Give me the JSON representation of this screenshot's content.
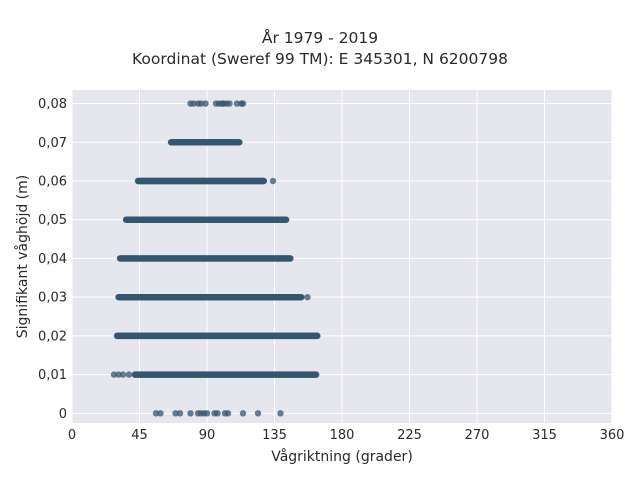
{
  "title_line1": "År 1979 - 2019",
  "title_line2": "Koordinat (Sweref 99 TM): E 345301, N 6200798",
  "colors": {
    "plot_bg": "#e6e6ef",
    "grid": "#ffffff",
    "marker": "#35566e"
  },
  "chart_data": {
    "type": "scatter",
    "xlabel": "Vågriktning (grader)",
    "ylabel": "Signifikant våghöjd (m)",
    "xlim": [
      0,
      360
    ],
    "ylim": [
      -0.0025,
      0.0835
    ],
    "x_ticks": [
      0,
      45,
      90,
      135,
      180,
      225,
      270,
      315,
      360
    ],
    "x_tick_labels": [
      "0",
      "45",
      "90",
      "135",
      "180",
      "225",
      "270",
      "315",
      "360"
    ],
    "y_ticks": [
      0,
      0.01,
      0.02,
      0.03,
      0.04,
      0.05,
      0.06,
      0.07,
      0.08
    ],
    "y_tick_labels": [
      "0",
      "0,01",
      "0,02",
      "0,03",
      "0,04",
      "0,05",
      "0,06",
      "0,07",
      "0,08"
    ],
    "grid": true,
    "series": [
      {
        "values": [
          {
            "y": 0.0,
            "x": [
              56,
              59,
              69,
              72,
              79,
              84,
              86,
              88,
              90,
              95,
              97,
              102,
              104,
              114,
              124,
              139
            ]
          },
          {
            "y": 0.01,
            "range": [
              28,
              163
            ],
            "sparse_x": [
              28,
              31,
              34,
              38,
              42
            ]
          },
          {
            "y": 0.02,
            "range": [
              30,
              164
            ]
          },
          {
            "y": 0.03,
            "range": [
              31,
              157
            ],
            "sparse_x": [
              153,
              157
            ]
          },
          {
            "y": 0.04,
            "range": [
              32,
              146
            ]
          },
          {
            "y": 0.05,
            "range": [
              36,
              143
            ]
          },
          {
            "y": 0.06,
            "range": [
              44,
              134
            ],
            "sparse_x": [
              128,
              134
            ]
          },
          {
            "y": 0.07,
            "range": [
              66,
              112
            ]
          },
          {
            "y": 0.08,
            "x": [
              79,
              81,
              84,
              86,
              89,
              96,
              98,
              100,
              101,
              103,
              105,
              110,
              113,
              114
            ]
          }
        ]
      }
    ]
  }
}
